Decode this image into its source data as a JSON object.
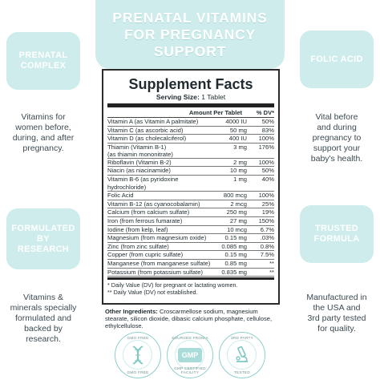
{
  "banner": {
    "line1": "PRENATAL VITAMINS",
    "line2": "FOR PREGNANCY",
    "line3": "SUPPORT"
  },
  "left": [
    {
      "tab_line1": "PRENATAL",
      "tab_line2": "COMPLEX",
      "text_lines": [
        "Vitamins for",
        "women before,",
        "during, and after",
        "pregnancy."
      ]
    },
    {
      "tab_line1": "FORMULATED",
      "tab_line2": "BY",
      "tab_line3": "RESEARCH",
      "text_lines": [
        "Vitamins &",
        "minerals specially",
        "formulated and",
        "backed by",
        "research."
      ]
    }
  ],
  "right": [
    {
      "tab_line1": "FOLIC ACID",
      "text_lines": [
        "Vital before",
        "and during",
        "pregnancy to",
        "support your",
        "baby's health."
      ]
    },
    {
      "tab_line1": "TRUSTED",
      "tab_line2": "FORMULA",
      "text_lines": [
        "Manufactured in",
        "the USA and",
        "3rd party tested",
        "for quality."
      ]
    }
  ],
  "facts": {
    "title": "Supplement Facts",
    "serving_label": "Serving Size:",
    "serving_value": "1 Tablet",
    "col_amount": "Amount Per Tablet",
    "col_dv": "% DV*",
    "rows": [
      {
        "name": "Vitamin A (as Vitamin A palmitate)",
        "amount": "4000 IU",
        "dv": "50%"
      },
      {
        "name": "Vitamin C (as ascorbic acid)",
        "amount": "50 mg",
        "dv": "83%"
      },
      {
        "name": "Vitamin D (as cholecalciferol)",
        "amount": "400 IU",
        "dv": "100%"
      },
      {
        "name": "Thiamin (Vitamin B-1)\n(as thiamin mononitrate)",
        "amount": "3 mg",
        "dv": "176%"
      },
      {
        "name": "Riboflavin (Vitamin B-2)",
        "amount": "2 mg",
        "dv": "100%"
      },
      {
        "name": "Niacin (as niacinamide)",
        "amount": "10 mg",
        "dv": "50%"
      },
      {
        "name": "Vitamin B-6 (as pyridoxine hydrochloride)",
        "amount": "1 mg",
        "dv": "40%"
      },
      {
        "name": "Folic Acid",
        "amount": "800 mcg",
        "dv": "100%"
      },
      {
        "name": "Vitamin B-12 (as cyanocobalamin)",
        "amount": "2 mcg",
        "dv": "25%"
      },
      {
        "name": "Calcium (from calcium sulfate)",
        "amount": "250 mg",
        "dv": "19%"
      },
      {
        "name": "Iron (from ferrous fumarate)",
        "amount": "27 mg",
        "dv": "150%"
      },
      {
        "name": "Iodine (from kelp, leaf)",
        "amount": "10 mcg",
        "dv": "6.7%"
      },
      {
        "name": "Magnesium (from magnesium oxide)",
        "amount": "0.15 mg",
        "dv": ".03%"
      },
      {
        "name": "Zinc (from zinc sulfate)",
        "amount": "0.085 mg",
        "dv": "0.8%"
      },
      {
        "name": "Copper (from cupric sulfate)",
        "amount": "0.15 mg",
        "dv": "7.5%"
      },
      {
        "name": "Manganese (from manganese sulfate)",
        "amount": "0.85 mg",
        "dv": "**"
      },
      {
        "name": "Potassium (from potassium sulfate)",
        "amount": "0.835 mg",
        "dv": "**"
      }
    ],
    "footnote1": "* Daily Value (DV) for pregnant or lactating women.",
    "footnote2": "** Daily Value (DV) not established."
  },
  "other_ingredients": {
    "label": "Other Ingredients:",
    "text": "Croscarmellose sodium, magnesium stearate, silicon dioxide, dibasic calcium phosphate, cellulose, ethylcellulose."
  },
  "badges": [
    {
      "top": "GMO FREE",
      "bottom": "GMO FREE",
      "icon": "dna-icon"
    },
    {
      "top": "SOURCED FROM A",
      "mark": "GMP",
      "bottom": "GMP CERTIFIED FACILITY",
      "icon": "gmp-icon"
    },
    {
      "top": "3RD PARTY",
      "bottom": "TESTED",
      "icon": "microscope-icon"
    }
  ],
  "colors": {
    "accent": "#cdeceb",
    "badge_ring": "#8fd0cc",
    "text": "#2b3a42"
  }
}
